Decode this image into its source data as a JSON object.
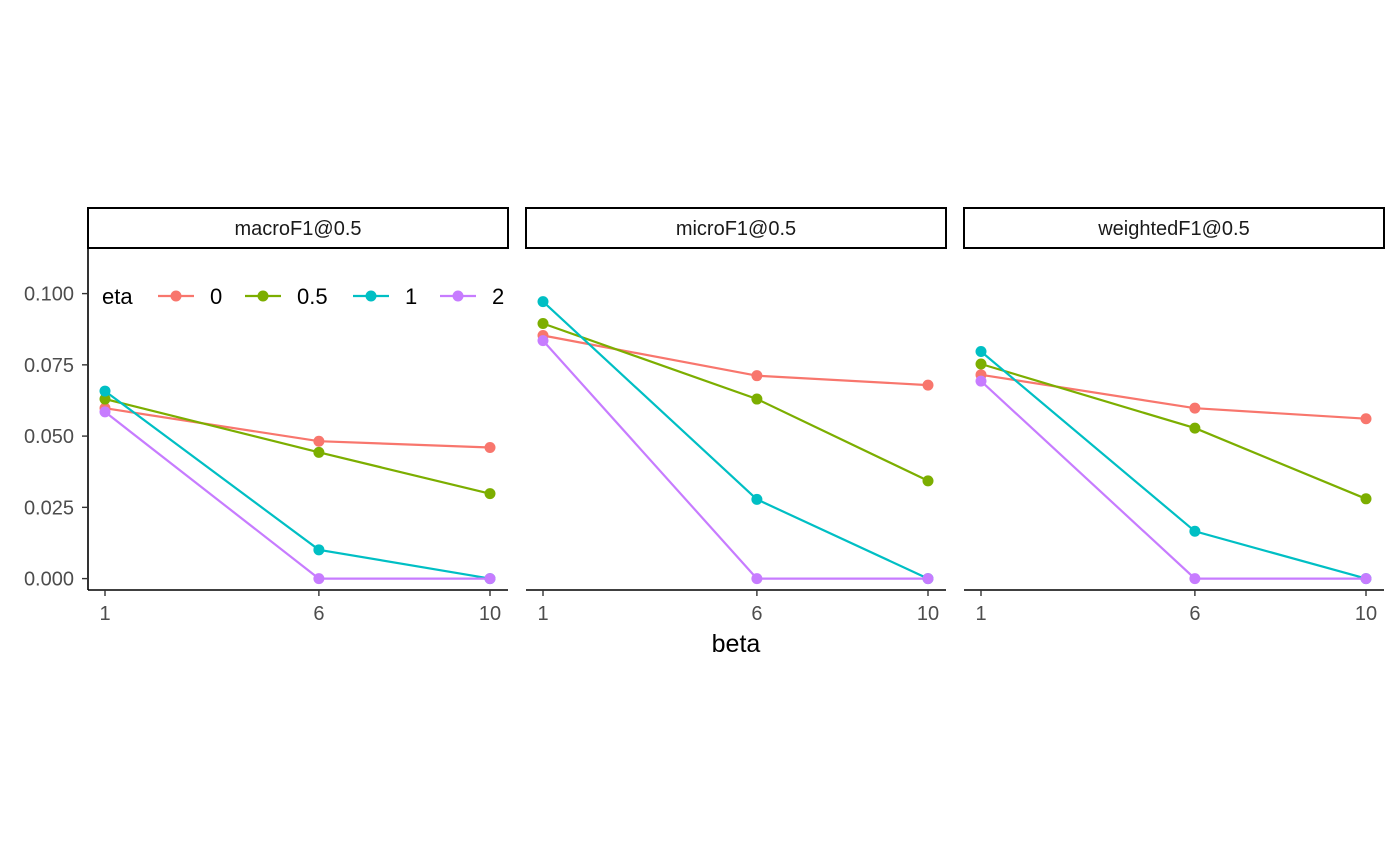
{
  "chart_data": {
    "type": "line",
    "facet_by": "metric",
    "panels": [
      {
        "title": "macroF1@0.5"
      },
      {
        "title": "microF1@0.5"
      },
      {
        "title": "weightedF1@0.5"
      }
    ],
    "x": [
      1,
      6,
      10
    ],
    "xticks": [
      "1",
      "6",
      "10"
    ],
    "xlabel": "beta",
    "ylabel": "",
    "ylim": [
      -0.004,
      0.116
    ],
    "yticks": [
      "0.000",
      "0.025",
      "0.050",
      "0.075",
      "0.100"
    ],
    "ytick_values": [
      0,
      0.025,
      0.05,
      0.075,
      0.1
    ],
    "legend": {
      "title": "eta",
      "placement": "top-left inside first panel"
    },
    "grid": false,
    "series": [
      {
        "name": "0",
        "color": "#F8766D",
        "values": [
          [
            0.0598,
            0.0482,
            0.046
          ],
          [
            0.0853,
            0.0712,
            0.0679
          ],
          [
            0.0715,
            0.0598,
            0.0561
          ]
        ]
      },
      {
        "name": "0.5",
        "color": "#7CAE00",
        "values": [
          [
            0.063,
            0.0443,
            0.0298
          ],
          [
            0.0895,
            0.063,
            0.0343
          ],
          [
            0.0753,
            0.0528,
            0.028
          ]
        ]
      },
      {
        "name": "1",
        "color": "#00BFC4",
        "values": [
          [
            0.0658,
            0.0101,
            0.0
          ],
          [
            0.0972,
            0.0278,
            0.0
          ],
          [
            0.0797,
            0.0166,
            0.0
          ]
        ]
      },
      {
        "name": "2",
        "color": "#C77CFF",
        "values": [
          [
            0.0585,
            0.0,
            0.0
          ],
          [
            0.0835,
            0.0,
            0.0
          ],
          [
            0.0693,
            0.0,
            0.0
          ]
        ]
      }
    ]
  }
}
